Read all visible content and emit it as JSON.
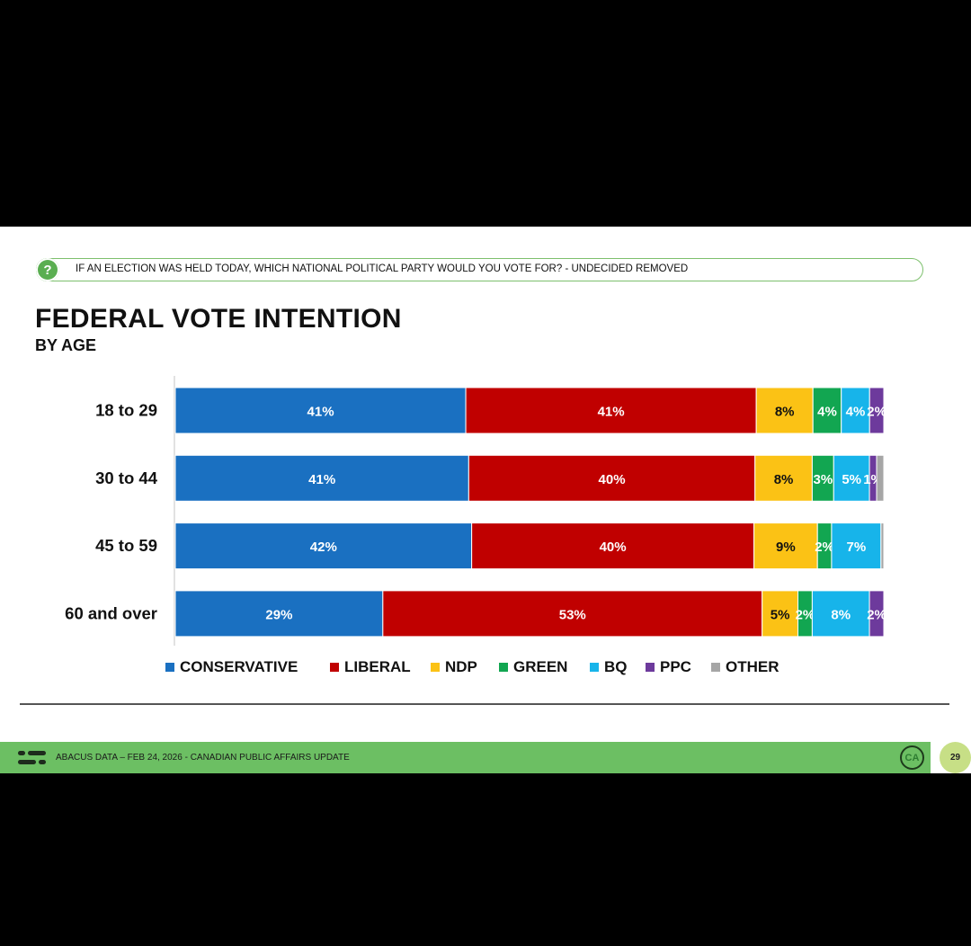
{
  "question": {
    "text": "IF AN ELECTION WAS HELD TODAY, WHICH NATIONAL POLITICAL PARTY WOULD YOU VOTE FOR? - UNDECIDED REMOVED",
    "icon": "question-icon"
  },
  "footer": {
    "text": "ABACUS DATA – FEB 24, 2026 - CANADIAN PUBLIC AFFAIRS UPDATE",
    "badge": "CA",
    "page_number": "29"
  },
  "colors": {
    "CONSERVATIVE": "#1a70c1",
    "LIBERAL": "#c00000",
    "NDP": "#fbc215",
    "GREEN": "#12a651",
    "BQ": "#17b4ea",
    "PPC": "#6d3a9c",
    "OTHER": "#a6a6a6"
  },
  "chart_data": {
    "type": "bar",
    "orientation": "horizontal",
    "stacked": true,
    "title": "FEDERAL VOTE INTENTION",
    "subtitle": "BY AGE",
    "categories": [
      "18 to 29",
      "30 to 44",
      "45 to 59",
      "60 and over"
    ],
    "series": [
      {
        "name": "CONSERVATIVE",
        "values": [
          41,
          41,
          42,
          29
        ],
        "labels": [
          "41%",
          "41%",
          "42%",
          "29%"
        ]
      },
      {
        "name": "LIBERAL",
        "values": [
          41,
          40,
          40,
          53
        ],
        "labels": [
          "41%",
          "40%",
          "40%",
          "53%"
        ]
      },
      {
        "name": "NDP",
        "values": [
          8,
          8,
          9,
          5
        ],
        "labels": [
          "8%",
          "8%",
          "9%",
          "5%"
        ]
      },
      {
        "name": "GREEN",
        "values": [
          4,
          3,
          2,
          2
        ],
        "labels": [
          "4%",
          "3%",
          "2%",
          "2%"
        ]
      },
      {
        "name": "BQ",
        "values": [
          4,
          5,
          7,
          8
        ],
        "labels": [
          "4%",
          "5%",
          "7%",
          "8%"
        ]
      },
      {
        "name": "PPC",
        "values": [
          2,
          1,
          0,
          2
        ],
        "labels": [
          "2%",
          "1%",
          "",
          "2%"
        ]
      },
      {
        "name": "OTHER",
        "values": [
          0,
          1,
          0.4,
          0
        ],
        "labels": [
          "",
          "",
          "",
          ""
        ]
      }
    ],
    "xlim": [
      0,
      100
    ],
    "legend": "bottom",
    "grid": false
  }
}
